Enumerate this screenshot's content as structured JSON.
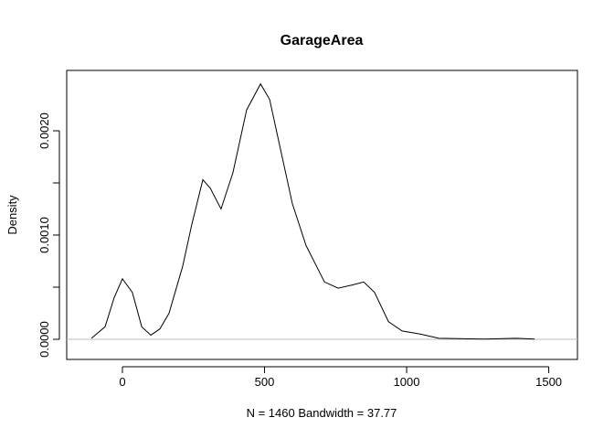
{
  "chart_data": {
    "type": "line",
    "title": "GarageArea",
    "xlabel": "N = 1460   Bandwidth = 37.77",
    "ylabel": "Density",
    "x": [
      -109,
      -61,
      -29,
      0,
      35,
      68,
      100,
      132,
      164,
      212,
      244,
      283,
      309,
      347,
      389,
      437,
      486,
      518,
      550,
      598,
      646,
      711,
      759,
      807,
      849,
      887,
      936,
      984,
      1048,
      1113,
      1273,
      1386,
      1450
    ],
    "series": [
      {
        "name": "GarageArea",
        "color": "#000000",
        "values": [
          1e-05,
          0.00012,
          0.0004,
          0.00058,
          0.00045,
          0.00012,
          4e-05,
          0.0001,
          0.00025,
          0.0007,
          0.0011,
          0.00153,
          0.00145,
          0.00125,
          0.0016,
          0.0022,
          0.00245,
          0.0023,
          0.0019,
          0.0013,
          0.0009,
          0.00055,
          0.00049,
          0.00052,
          0.00055,
          0.00045,
          0.00017,
          8e-05,
          5e-05,
          1e-05,
          2e-06,
          1e-05,
          2e-06
        ]
      }
    ],
    "xlim": [
      -196,
      1601
    ],
    "ylim": [
      -0.000193,
      0.002579
    ],
    "xticks": [
      0,
      500,
      1000,
      1500
    ],
    "yticks": [
      {
        "value": 0,
        "label": "0.0000"
      },
      {
        "value": 0.0005,
        "label": null
      },
      {
        "value": 0.001,
        "label": "0.0010"
      },
      {
        "value": 0.0015,
        "label": null
      },
      {
        "value": 0.002,
        "label": "0.0020"
      }
    ],
    "zero_line_color": "#bebebe"
  }
}
